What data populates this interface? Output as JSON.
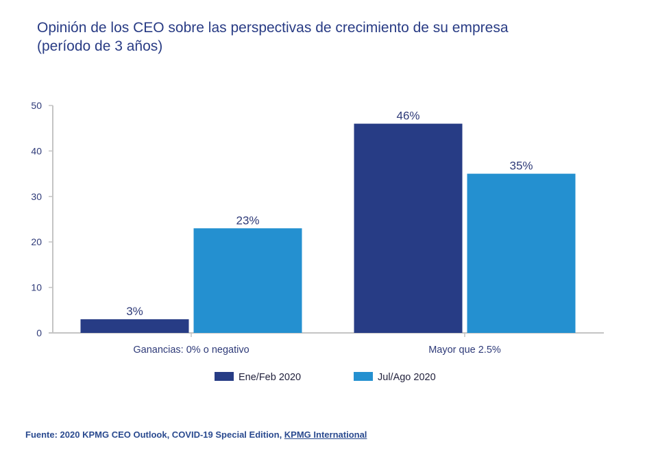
{
  "title": {
    "line1": "Opinión de los CEO sobre las perspectivas de crecimiento de su empresa",
    "line2": "(período de 3 años)"
  },
  "source": {
    "prefix": "Fuente: 2020 KPMG CEO Outlook, COVID-19 Special Edition, ",
    "link_text": "KPMG International"
  },
  "colors": {
    "series1": "#273c85",
    "series2": "#2490d0",
    "axis": "#c4c4c4",
    "text": "#2e3a78"
  },
  "chart_data": {
    "type": "bar",
    "title": "Opinión de los CEO sobre las perspectivas de crecimiento de su empresa (período de 3 años)",
    "xlabel": "",
    "ylabel": "",
    "categories": [
      "Ganancias: 0% o negativo",
      "Mayor que 2.5%"
    ],
    "series": [
      {
        "name": "Ene/Feb 2020",
        "values": [
          3,
          46
        ],
        "labels": [
          "3%",
          "46%"
        ],
        "color": "#273c85"
      },
      {
        "name": "Jul/Ago 2020",
        "values": [
          23,
          35
        ],
        "labels": [
          "23%",
          "35%"
        ],
        "color": "#2490d0"
      }
    ],
    "ylim": [
      0,
      50
    ],
    "yticks": [
      0,
      10,
      20,
      30,
      40,
      50
    ],
    "ytick_labels": [
      "0",
      "10",
      "20",
      "30",
      "40",
      "50"
    ],
    "grid": false,
    "legend_position": "bottom-center"
  }
}
